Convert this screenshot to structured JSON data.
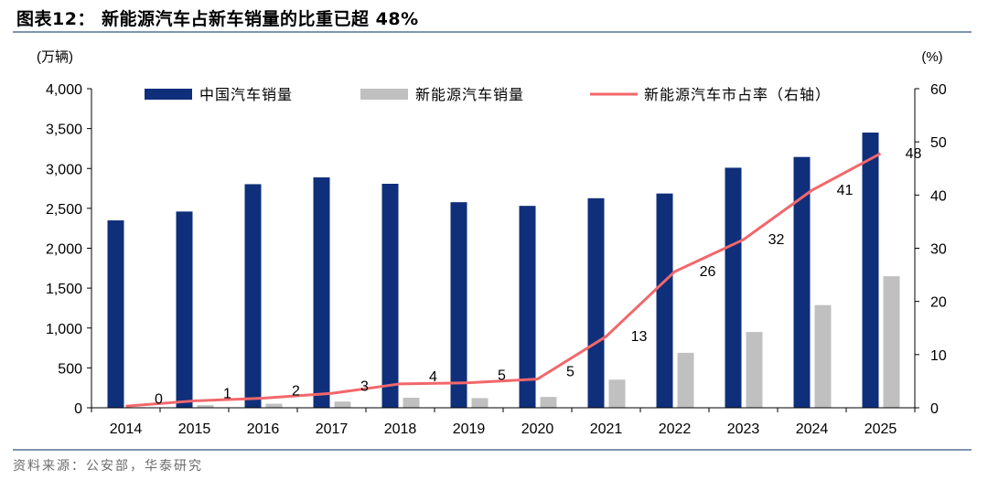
{
  "header": {
    "title": "图表12：  新能源汽车占新车销量的比重已超 48%"
  },
  "footer": {
    "source": "资料来源：公安部，华泰研究"
  },
  "colors": {
    "bar_total": "#0f2f7a",
    "bar_nev": "#c0c0c0",
    "line_share": "#f2676b",
    "rule": "#7f95ad"
  },
  "chart_data": {
    "type": "bar",
    "categories": [
      "2014",
      "2015",
      "2016",
      "2017",
      "2018",
      "2019",
      "2020",
      "2021",
      "2022",
      "2023",
      "2024",
      "2025"
    ],
    "series": [
      {
        "name": "中国汽车销量",
        "type": "bar",
        "axis": "left",
        "values": [
          2349,
          2460,
          2803,
          2888,
          2808,
          2577,
          2531,
          2627,
          2686,
          3009,
          3144,
          3450
        ]
      },
      {
        "name": "新能源汽车销量",
        "type": "bar",
        "axis": "left",
        "values": [
          7,
          33,
          51,
          78,
          126,
          121,
          136,
          352,
          689,
          950,
          1287,
          1649
        ]
      },
      {
        "name": "新能源汽车市占率（右轴）",
        "type": "line",
        "axis": "right",
        "values": [
          0.3,
          1.3,
          1.8,
          2.7,
          4.5,
          4.7,
          5.4,
          13.4,
          25.6,
          31.6,
          40.9,
          47.8
        ],
        "labels": [
          "0",
          "1",
          "2",
          "3",
          "4",
          "5",
          "5",
          "13",
          "26",
          "32",
          "41",
          "48"
        ]
      }
    ],
    "left_axis": {
      "unit": "(万辆)",
      "ylim": [
        0,
        4000
      ],
      "ticks": [
        "0",
        "500",
        "1,000",
        "1,500",
        "2,000",
        "2,500",
        "3,000",
        "3,500",
        "4,000"
      ]
    },
    "right_axis": {
      "unit": "(%)",
      "ylim": [
        0,
        60
      ],
      "ticks": [
        "0",
        "10",
        "20",
        "30",
        "40",
        "50",
        "60"
      ]
    },
    "legend": "top",
    "grid": false
  }
}
